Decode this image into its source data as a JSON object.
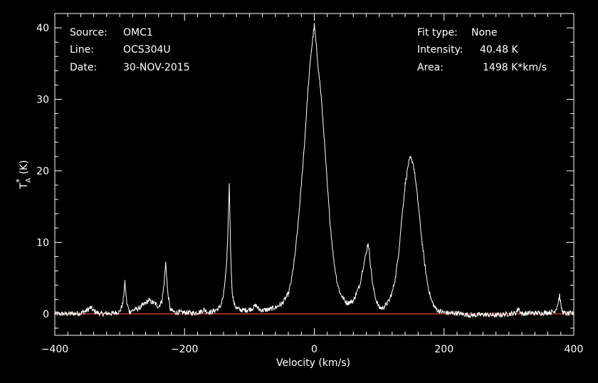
{
  "annotations": {
    "left": [
      {
        "key": "Source:",
        "value": "OMC1"
      },
      {
        "key": "Line:",
        "value": "OCS304U"
      },
      {
        "key": "Date:",
        "value": "30-NOV-2015"
      }
    ],
    "right": [
      {
        "key": "Fit type:",
        "value": "None"
      },
      {
        "key": "Intensity:",
        "value": "40.48 K"
      },
      {
        "key": "Area:",
        "value": "1498 K*km/s"
      }
    ]
  },
  "colors": {
    "background": "#000000",
    "axes": "#ffffff",
    "spectrum": "#ffffff",
    "baseline": "#c0392b"
  },
  "chart_data": {
    "type": "line",
    "title": "",
    "xlabel": "Velocity (km/s)",
    "ylabel": "T_A* (K)",
    "xlim": [
      -400,
      400
    ],
    "ylim": [
      -3,
      42
    ],
    "xticks": [
      -400,
      -200,
      0,
      200,
      400
    ],
    "xtick_labels": [
      "−400",
      "−200",
      "0",
      "200",
      "400"
    ],
    "yticks": [
      0,
      10,
      20,
      30,
      40
    ],
    "ytick_labels": [
      "0",
      "10",
      "20",
      "30",
      "40"
    ],
    "grid": false,
    "baseline_y": 0,
    "series": [
      {
        "x": [
          -400,
          -380,
          -360,
          -350,
          -345,
          -340,
          -330,
          -310,
          -300,
          -295,
          -292,
          -289,
          -285,
          -280,
          -270,
          -260,
          -255,
          -250,
          -245,
          -240,
          -235,
          -232,
          -229,
          -226,
          -222,
          -215,
          -200,
          -185,
          -175,
          -170,
          -165,
          -160,
          -150,
          -145,
          -140,
          -135,
          -133,
          -131,
          -129,
          -127,
          -124,
          -120,
          -115,
          -110,
          -100,
          -95,
          -90,
          -85,
          -80,
          -70,
          -60,
          -50,
          -40,
          -35,
          -30,
          -25,
          -20,
          -15,
          -10,
          -5,
          -3,
          0,
          3,
          6,
          10,
          15,
          20,
          25,
          30,
          35,
          40,
          50,
          60,
          70,
          75,
          80,
          83,
          86,
          90,
          95,
          100,
          105,
          110,
          115,
          120,
          125,
          130,
          135,
          140,
          145,
          148,
          152,
          155,
          160,
          165,
          170,
          175,
          180,
          185,
          190,
          200,
          210,
          220,
          240,
          260,
          280,
          300,
          310,
          315,
          318,
          320,
          330,
          350,
          370,
          375,
          378,
          380,
          382,
          385,
          390,
          400
        ],
        "y": [
          0.0,
          0.0,
          0.1,
          0.5,
          0.9,
          0.4,
          0.0,
          0.1,
          0.3,
          1.5,
          4.4,
          1.5,
          0.3,
          0.5,
          0.8,
          1.5,
          1.9,
          1.6,
          1.4,
          1.0,
          1.8,
          3.8,
          7.2,
          3.0,
          0.6,
          0.2,
          0.2,
          0.1,
          0.3,
          0.6,
          0.3,
          0.2,
          0.6,
          1.0,
          2.5,
          7.0,
          12.0,
          18.3,
          9.0,
          3.5,
          1.5,
          0.8,
          0.6,
          0.5,
          0.6,
          0.8,
          1.2,
          0.6,
          0.5,
          0.6,
          0.9,
          1.4,
          2.8,
          4.8,
          8.0,
          12.5,
          18.0,
          24.0,
          31.0,
          36.5,
          38.0,
          40.4,
          37.5,
          34.5,
          31.0,
          25.0,
          18.0,
          12.0,
          7.5,
          4.5,
          2.8,
          1.5,
          1.8,
          4.0,
          6.5,
          8.5,
          10.0,
          7.5,
          4.0,
          2.0,
          0.9,
          0.8,
          1.2,
          1.8,
          3.0,
          5.0,
          8.5,
          13.5,
          18.0,
          21.0,
          21.8,
          21.2,
          19.5,
          15.5,
          11.0,
          7.0,
          4.0,
          2.0,
          1.0,
          0.5,
          0.2,
          0.1,
          0.1,
          -0.2,
          -0.1,
          -0.2,
          0.0,
          0.1,
          0.8,
          0.2,
          0.0,
          0.1,
          0.1,
          0.3,
          1.2,
          2.6,
          1.2,
          0.4,
          0.1,
          0.0,
          0.1
        ]
      }
    ]
  }
}
